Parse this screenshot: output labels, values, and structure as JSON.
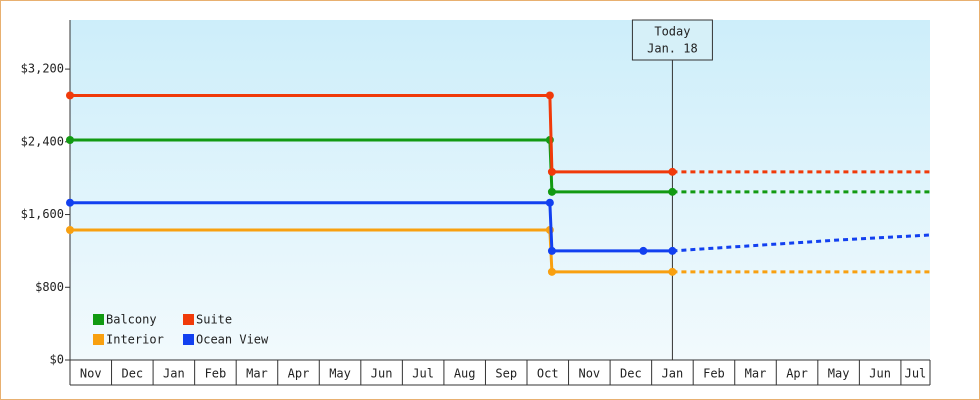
{
  "chart_data": {
    "type": "line",
    "categories": [
      "Nov",
      "Dec",
      "Jan",
      "Feb",
      "Mar",
      "Apr",
      "May",
      "Jun",
      "Jul",
      "Aug",
      "Sep",
      "Oct",
      "Nov",
      "Dec",
      "Jan",
      "Feb",
      "Mar",
      "Apr",
      "May",
      "Jun",
      "Jul"
    ],
    "xlim": [
      0,
      20.7
    ],
    "ylim": [
      0,
      3740
    ],
    "yticks": [
      {
        "value": 0,
        "label": "$0"
      },
      {
        "value": 800,
        "label": "$800"
      },
      {
        "value": 1600,
        "label": "$1,600"
      },
      {
        "value": 2400,
        "label": "$2,400"
      },
      {
        "value": 3200,
        "label": "$3,200"
      }
    ],
    "today": {
      "x": 14.5,
      "label": [
        "Today",
        "Jan. 18"
      ]
    },
    "series": [
      {
        "name": "Balcony",
        "color": "#129a12",
        "x": [
          0,
          11.55,
          11.6,
          14.5
        ],
        "values": [
          2420,
          2420,
          1850,
          1850
        ],
        "forecast_x": [
          14.5,
          20.7
        ],
        "forecast_values": [
          1850,
          1850
        ]
      },
      {
        "name": "Suite",
        "color": "#f03a0a",
        "x": [
          0,
          11.55,
          11.6,
          14.5
        ],
        "values": [
          2910,
          2910,
          2070,
          2070
        ],
        "forecast_x": [
          14.5,
          20.7
        ],
        "forecast_values": [
          2070,
          2070
        ]
      },
      {
        "name": "Interior",
        "color": "#f8a010",
        "x": [
          0,
          11.55,
          11.6,
          14.5
        ],
        "values": [
          1430,
          1430,
          970,
          970
        ],
        "forecast_x": [
          14.5,
          20.7
        ],
        "forecast_values": [
          970,
          970
        ]
      },
      {
        "name": "Ocean View",
        "color": "#1240f0",
        "x": [
          0,
          11.55,
          11.6,
          13.8,
          14.5
        ],
        "values": [
          1730,
          1730,
          1200,
          1200,
          1200
        ],
        "forecast_x": [
          14.5,
          16.5,
          18.5,
          20.7
        ],
        "forecast_values": [
          1200,
          1260,
          1320,
          1375
        ]
      }
    ]
  }
}
